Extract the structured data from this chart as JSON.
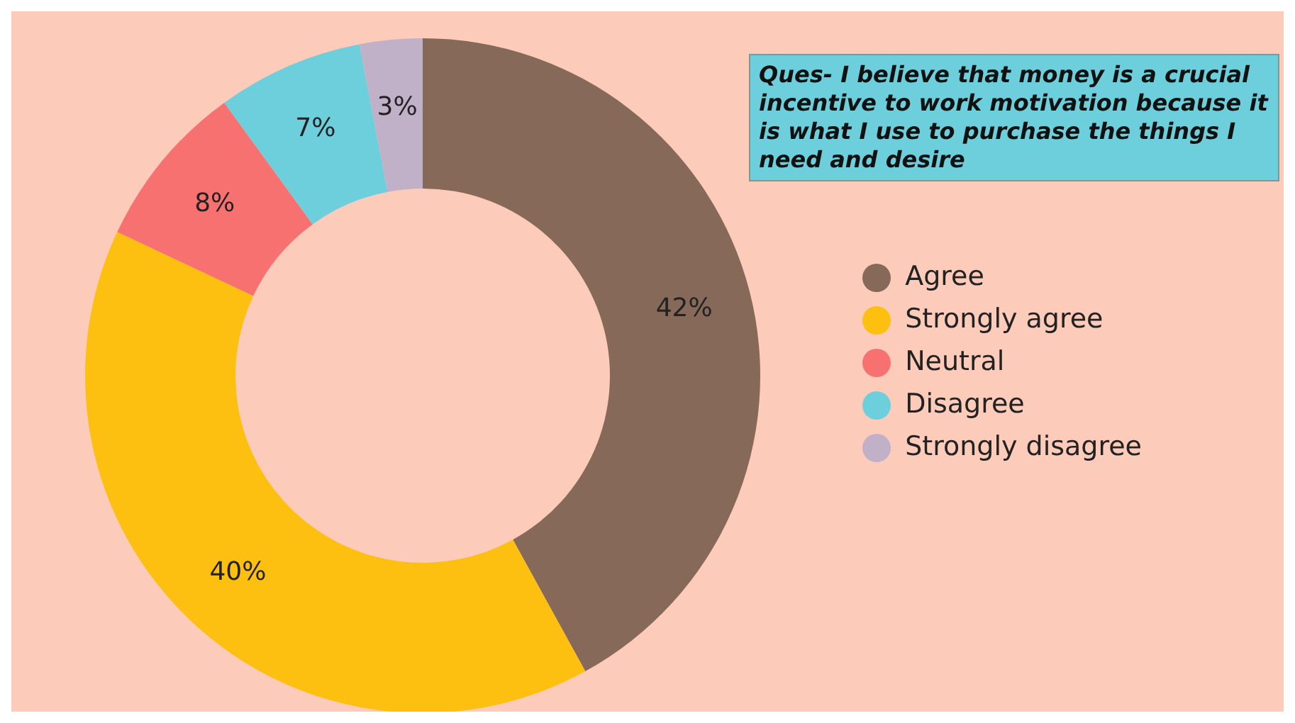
{
  "chart_data": {
    "type": "donut",
    "title": "Ques- I believe that money is a crucial incentive to work motivation because it is what I use to purchase the things I need and desire",
    "categories": [
      "Agree",
      "Strongly agree",
      "Neutral",
      "Disagree",
      "Strongly disagree"
    ],
    "values": [
      42,
      40,
      8,
      7,
      3
    ],
    "value_labels": [
      "42%",
      "40%",
      "8%",
      "7%",
      "3%"
    ],
    "colors": [
      "#866958",
      "#fdbf10",
      "#f87171",
      "#6dcfdc",
      "#c0b1c8"
    ],
    "legend": "right"
  }
}
